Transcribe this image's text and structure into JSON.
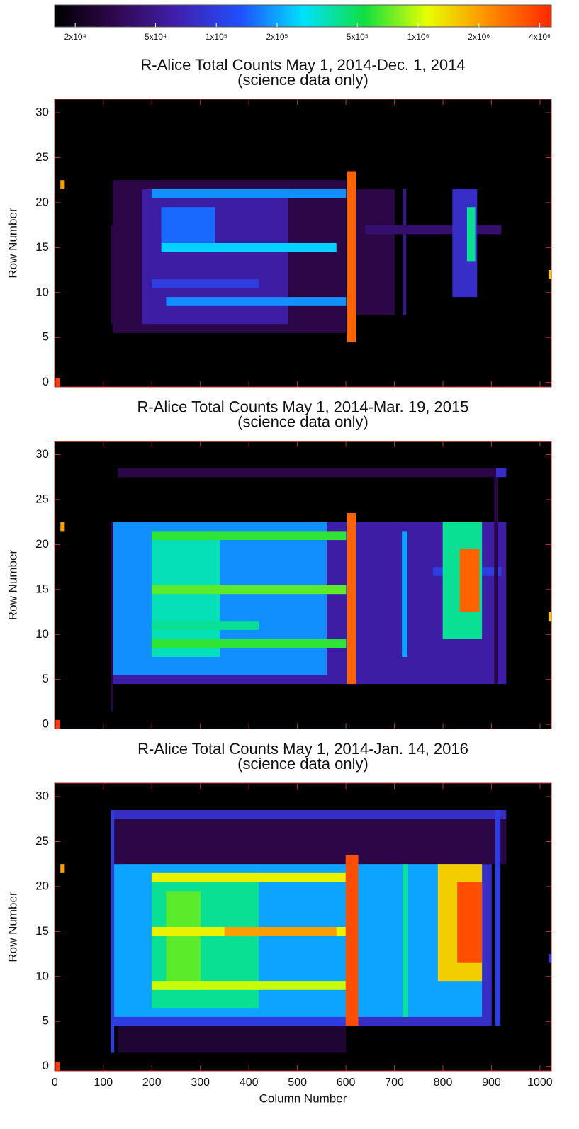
{
  "colorbar": {
    "lim": [
      15800,
      4570000
    ],
    "log": true,
    "colors": [
      "#000000",
      "#300850",
      "#4020b0",
      "#2050ff",
      "#00e0ff",
      "#10e040",
      "#e8ff00",
      "#ff8c00",
      "#ff2800"
    ],
    "ticks": [
      {
        "value": 20000,
        "label": "2x10⁴"
      },
      {
        "value": 50000,
        "label": "5x10⁴"
      },
      {
        "value": 100000,
        "label": "1x10⁵"
      },
      {
        "value": 200000,
        "label": "2x10⁵"
      },
      {
        "value": 500000,
        "label": "5x10⁵"
      },
      {
        "value": 1000000,
        "label": "1x10⁶"
      },
      {
        "value": 2000000,
        "label": "2x10⁶"
      },
      {
        "value": 4000000,
        "label": "4x10⁶"
      }
    ]
  },
  "chart_data": [
    {
      "type": "heatmap",
      "title": "R-Alice Total Counts  May 1, 2014-Dec. 1, 2014",
      "subtitle": "(science data only)",
      "ylabel": "Row Number",
      "xlim": [
        -0.5,
        1023.5
      ],
      "ylim": [
        -0.5,
        31.5
      ],
      "xticks": [
        0,
        100,
        200,
        300,
        400,
        500,
        600,
        700,
        800,
        900,
        1000
      ],
      "yticks": [
        0,
        5,
        10,
        15,
        20,
        25,
        30
      ],
      "regions": [
        {
          "x": [
            120,
            600
          ],
          "y": [
            6,
            22
          ],
          "value": 30000
        },
        {
          "x": [
            180,
            480
          ],
          "y": [
            7,
            21
          ],
          "value": 60000
        },
        {
          "x": [
            220,
            330
          ],
          "y": [
            16,
            19
          ],
          "value": 150000
        },
        {
          "x": [
            200,
            600
          ],
          "y": [
            21,
            21
          ],
          "value": 180000
        },
        {
          "x": [
            200,
            420
          ],
          "y": [
            11,
            11
          ],
          "value": 100000
        },
        {
          "x": [
            220,
            580
          ],
          "y": [
            15,
            15
          ],
          "value": 250000
        },
        {
          "x": [
            230,
            600
          ],
          "y": [
            9,
            9
          ],
          "value": 180000
        },
        {
          "x": [
            620,
            700
          ],
          "y": [
            8,
            21
          ],
          "value": 30000
        },
        {
          "x": [
            718,
            724
          ],
          "y": [
            8,
            21
          ],
          "value": 50000
        },
        {
          "x": [
            640,
            920
          ],
          "y": [
            17,
            17
          ],
          "value": 40000
        },
        {
          "x": [
            820,
            870
          ],
          "y": [
            10,
            21
          ],
          "value": 80000
        },
        {
          "x": [
            850,
            866
          ],
          "y": [
            14,
            19
          ],
          "value": 400000
        },
        {
          "x": [
            116,
            120
          ],
          "y": [
            7,
            17
          ],
          "value": 30000
        },
        {
          "x": [
            603,
            620
          ],
          "y": [
            5,
            23
          ],
          "value": 3000000
        },
        {
          "x": [
            12,
            20
          ],
          "y": [
            22,
            22
          ],
          "value": 2000000
        },
        {
          "x": [
            2,
            10
          ],
          "y": [
            0,
            0
          ],
          "value": 4000000
        },
        {
          "x": [
            1018,
            1023
          ],
          "y": [
            12,
            12
          ],
          "value": 1500000
        }
      ]
    },
    {
      "type": "heatmap",
      "title": "R-Alice Total Counts  May 1, 2014-Mar. 19, 2015",
      "subtitle": "(science data only)",
      "ylabel": "Row Number",
      "xlim": [
        -0.5,
        1023.5
      ],
      "ylim": [
        -0.5,
        31.5
      ],
      "xticks": [
        0,
        100,
        200,
        300,
        400,
        500,
        600,
        700,
        800,
        900,
        1000
      ],
      "yticks": [
        0,
        5,
        10,
        15,
        20,
        25,
        30
      ],
      "regions": [
        {
          "x": [
            130,
            920
          ],
          "y": [
            28,
            28
          ],
          "value": 30000
        },
        {
          "x": [
            120,
            930
          ],
          "y": [
            5,
            22
          ],
          "value": 60000
        },
        {
          "x": [
            120,
            560
          ],
          "y": [
            6,
            22
          ],
          "value": 180000
        },
        {
          "x": [
            200,
            340
          ],
          "y": [
            8,
            20
          ],
          "value": 350000
        },
        {
          "x": [
            200,
            600
          ],
          "y": [
            21,
            21
          ],
          "value": 600000
        },
        {
          "x": [
            200,
            600
          ],
          "y": [
            15,
            15
          ],
          "value": 700000
        },
        {
          "x": [
            200,
            600
          ],
          "y": [
            9,
            9
          ],
          "value": 600000
        },
        {
          "x": [
            200,
            420
          ],
          "y": [
            11,
            11
          ],
          "value": 400000
        },
        {
          "x": [
            716,
            726
          ],
          "y": [
            8,
            21
          ],
          "value": 200000
        },
        {
          "x": [
            780,
            920
          ],
          "y": [
            17,
            17
          ],
          "value": 100000
        },
        {
          "x": [
            800,
            880
          ],
          "y": [
            10,
            22
          ],
          "value": 400000
        },
        {
          "x": [
            835,
            875
          ],
          "y": [
            13,
            19
          ],
          "value": 3000000
        },
        {
          "x": [
            116,
            120
          ],
          "y": [
            2,
            22
          ],
          "value": 30000
        },
        {
          "x": [
            906,
            912
          ],
          "y": [
            5,
            28
          ],
          "value": 30000
        },
        {
          "x": [
            910,
            930
          ],
          "y": [
            28,
            28
          ],
          "value": 80000
        },
        {
          "x": [
            603,
            620
          ],
          "y": [
            5,
            23
          ],
          "value": 3000000
        },
        {
          "x": [
            12,
            20
          ],
          "y": [
            22,
            22
          ],
          "value": 2000000
        },
        {
          "x": [
            2,
            10
          ],
          "y": [
            0,
            0
          ],
          "value": 4000000
        },
        {
          "x": [
            1018,
            1023
          ],
          "y": [
            12,
            12
          ],
          "value": 1500000
        }
      ]
    },
    {
      "type": "heatmap",
      "title": "R-Alice Total Counts  May 1, 2014-Jan. 14, 2016",
      "subtitle": "(science data only)",
      "ylabel": "Row Number",
      "xlabel": "Column Number",
      "xlim": [
        -0.5,
        1023.5
      ],
      "ylim": [
        -0.5,
        31.5
      ],
      "xticks": [
        0,
        100,
        200,
        300,
        400,
        500,
        600,
        700,
        800,
        900,
        1000
      ],
      "yticks": [
        0,
        5,
        10,
        15,
        20,
        25,
        30
      ],
      "regions": [
        {
          "x": [
            130,
            600
          ],
          "y": [
            2,
            4
          ],
          "value": 25000
        },
        {
          "x": [
            120,
            930
          ],
          "y": [
            23,
            27
          ],
          "value": 30000
        },
        {
          "x": [
            120,
            930
          ],
          "y": [
            28,
            28
          ],
          "value": 80000
        },
        {
          "x": [
            120,
            900
          ],
          "y": [
            5,
            22
          ],
          "value": 80000
        },
        {
          "x": [
            120,
            600
          ],
          "y": [
            5,
            5
          ],
          "value": 100000
        },
        {
          "x": [
            120,
            880
          ],
          "y": [
            6,
            22
          ],
          "value": 200000
        },
        {
          "x": [
            200,
            420
          ],
          "y": [
            7,
            21
          ],
          "value": 400000
        },
        {
          "x": [
            230,
            300
          ],
          "y": [
            9,
            19
          ],
          "value": 700000
        },
        {
          "x": [
            200,
            600
          ],
          "y": [
            21,
            21
          ],
          "value": 1200000
        },
        {
          "x": [
            200,
            600
          ],
          "y": [
            15,
            15
          ],
          "value": 1200000
        },
        {
          "x": [
            350,
            580
          ],
          "y": [
            15,
            15
          ],
          "value": 2000000
        },
        {
          "x": [
            200,
            600
          ],
          "y": [
            9,
            9
          ],
          "value": 1000000
        },
        {
          "x": [
            718,
            728
          ],
          "y": [
            6,
            22
          ],
          "value": 400000
        },
        {
          "x": [
            790,
            880
          ],
          "y": [
            10,
            22
          ],
          "value": 1500000
        },
        {
          "x": [
            830,
            880
          ],
          "y": [
            12,
            20
          ],
          "value": 3500000
        },
        {
          "x": [
            116,
            122
          ],
          "y": [
            2,
            28
          ],
          "value": 100000
        },
        {
          "x": [
            908,
            918
          ],
          "y": [
            5,
            28
          ],
          "value": 100000
        },
        {
          "x": [
            600,
            625
          ],
          "y": [
            5,
            23
          ],
          "value": 3500000
        },
        {
          "x": [
            12,
            20
          ],
          "y": [
            22,
            22
          ],
          "value": 2000000
        },
        {
          "x": [
            2,
            10
          ],
          "y": [
            0,
            0
          ],
          "value": 4000000
        },
        {
          "x": [
            1018,
            1023
          ],
          "y": [
            12,
            12
          ],
          "value": 100000
        }
      ]
    }
  ]
}
